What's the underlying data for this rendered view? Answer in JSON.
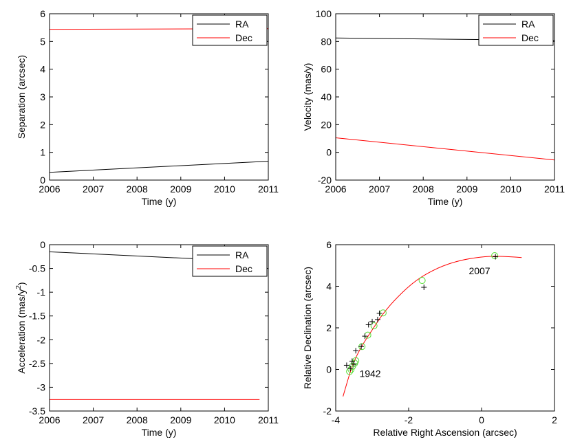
{
  "chart_data": [
    {
      "type": "line",
      "xlabel": "Time (y)",
      "ylabel": "Separation (arcsec)",
      "xlim": [
        2006,
        2011
      ],
      "ylim": [
        0,
        6
      ],
      "xticks": [
        2006,
        2007,
        2008,
        2009,
        2010,
        2011
      ],
      "yticks": [
        0,
        1,
        2,
        3,
        4,
        5,
        6
      ],
      "legend": "top-right",
      "series": [
        {
          "name": "RA",
          "color": "#000000",
          "x": [
            2006,
            2011
          ],
          "y": [
            0.28,
            0.68
          ]
        },
        {
          "name": "Dec",
          "color": "#ff0000",
          "x": [
            2006,
            2011
          ],
          "y": [
            5.44,
            5.46
          ]
        }
      ]
    },
    {
      "type": "line",
      "xlabel": "Time (y)",
      "ylabel": "Velocity (mas/y)",
      "xlim": [
        2006,
        2011
      ],
      "ylim": [
        -20,
        100
      ],
      "xticks": [
        2006,
        2007,
        2008,
        2009,
        2010,
        2011
      ],
      "yticks": [
        -20,
        0,
        20,
        40,
        60,
        80,
        100
      ],
      "legend": "top-right",
      "series": [
        {
          "name": "RA",
          "color": "#000000",
          "x": [
            2006,
            2011
          ],
          "y": [
            82.5,
            80.8
          ]
        },
        {
          "name": "Dec",
          "color": "#ff0000",
          "x": [
            2006,
            2011
          ],
          "y": [
            10.5,
            -5.5
          ]
        }
      ]
    },
    {
      "type": "line",
      "xlabel": "Time (y)",
      "ylabel": "Acceleration (mas/y",
      "ylabel_sup": "2",
      "ylabel_close": ")",
      "xlim": [
        2006,
        2011
      ],
      "ylim": [
        -3.5,
        0
      ],
      "xticks": [
        2006,
        2007,
        2008,
        2009,
        2010,
        2011
      ],
      "yticks": [
        "0",
        "-0.5",
        "-1",
        "-1.5",
        "-2",
        "-2.5",
        "-3",
        "-3.5"
      ],
      "ytick_values": [
        0,
        -0.5,
        -1,
        -1.5,
        -2,
        -2.5,
        -3,
        -3.5
      ],
      "legend": "top-right",
      "series": [
        {
          "name": "RA",
          "color": "#000000",
          "x": [
            2006,
            2010.8
          ],
          "y": [
            -0.15,
            -0.36
          ]
        },
        {
          "name": "Dec",
          "color": "#ff0000",
          "x": [
            2006,
            2010.8
          ],
          "y": [
            -3.26,
            -3.26
          ]
        }
      ]
    },
    {
      "type": "scatter",
      "xlabel": "Relative Right Ascension (arcsec)",
      "ylabel": "Relative Declination (arcsec)",
      "xlim": [
        -4,
        2
      ],
      "ylim": [
        -2,
        6
      ],
      "xticks": [
        -4,
        -2,
        0,
        2
      ],
      "yticks": [
        -2,
        0,
        2,
        4,
        6
      ],
      "orbit_fit": {
        "color": "#ff0000",
        "x": [
          -3.8,
          -3.55,
          -3.3,
          -3.0,
          -2.7,
          -2.3,
          -1.8,
          -1.2,
          -0.6,
          0.0,
          0.4,
          0.8,
          1.1
        ],
        "y": [
          -1.3,
          0.2,
          1.1,
          1.9,
          2.7,
          3.5,
          4.3,
          4.9,
          5.25,
          5.42,
          5.45,
          5.42,
          5.38
        ]
      },
      "observed": {
        "marker": "plus",
        "color": "#000000",
        "x": [
          -3.7,
          -3.6,
          -3.55,
          -3.5,
          -3.45,
          -3.3,
          -3.2,
          -3.1,
          -3.0,
          -2.85,
          -2.8,
          -1.58,
          0.38
        ],
        "y": [
          0.2,
          0.05,
          0.4,
          0.25,
          0.9,
          1.1,
          1.6,
          2.15,
          2.3,
          2.4,
          2.7,
          3.95,
          5.42
        ]
      },
      "model": {
        "marker": "circle",
        "color": "#55dd33",
        "x": [
          -3.62,
          -3.58,
          -3.54,
          -3.48,
          -3.45,
          -3.28,
          -3.12,
          -2.95,
          -2.7,
          -1.63,
          0.36
        ],
        "y": [
          -0.1,
          0.0,
          0.15,
          0.3,
          0.42,
          1.1,
          1.65,
          2.1,
          2.72,
          4.28,
          5.47
        ]
      },
      "annotations": [
        {
          "text": "1942",
          "x": -3.35,
          "y": -0.2
        },
        {
          "text": "2007",
          "x": -0.35,
          "y": 4.75
        }
      ]
    }
  ]
}
